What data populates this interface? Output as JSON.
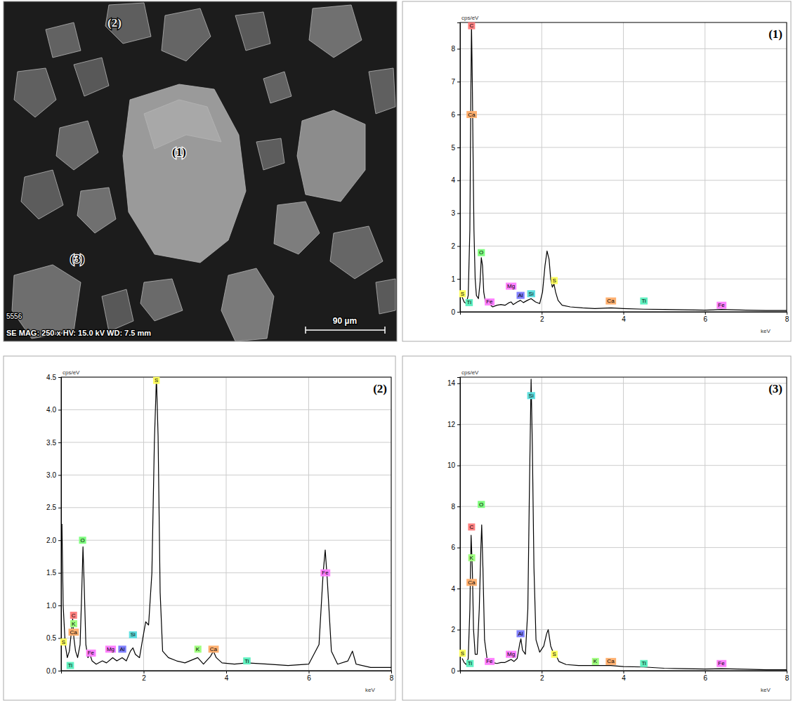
{
  "sem_image": {
    "markers": [
      "(1)",
      "(2)",
      "(3)"
    ],
    "id_label": "5556",
    "info": "SE MAG: 250 x HV: 15.0 kV WD: 7.5 mm",
    "scale_bar": "90 µm"
  },
  "chart_data": [
    {
      "type": "line",
      "title": "(1)",
      "x_label": "keV",
      "y_label": "cps/eV",
      "xlim": [
        0,
        8
      ],
      "xticks": [
        2,
        4,
        6,
        8
      ],
      "ylim": [
        0,
        8.8
      ],
      "yticks": [
        0,
        1,
        2,
        3,
        4,
        5,
        6,
        7,
        8
      ],
      "grid": true,
      "x": [
        0.05,
        0.1,
        0.15,
        0.2,
        0.24,
        0.26,
        0.28,
        0.3,
        0.32,
        0.34,
        0.37,
        0.4,
        0.45,
        0.49,
        0.52,
        0.55,
        0.58,
        0.62,
        0.7,
        0.8,
        0.9,
        1.0,
        1.1,
        1.2,
        1.25,
        1.3,
        1.4,
        1.48,
        1.55,
        1.65,
        1.74,
        1.85,
        1.95,
        2.02,
        2.08,
        2.13,
        2.18,
        2.22,
        2.26,
        2.3,
        2.34,
        2.4,
        2.5,
        2.7,
        3.0,
        3.3,
        3.7,
        4.0,
        4.5,
        5.0,
        5.5,
        6.0,
        6.4,
        7.0,
        7.5,
        8.0
      ],
      "series": [
        {
          "color": "#000000",
          "values": [
            0.45,
            0.3,
            0.25,
            0.5,
            2.5,
            6.0,
            8.75,
            7.0,
            4.6,
            2.5,
            1.0,
            0.5,
            0.4,
            0.9,
            1.65,
            1.4,
            0.6,
            0.3,
            0.25,
            0.15,
            0.2,
            0.22,
            0.2,
            0.28,
            0.3,
            0.22,
            0.3,
            0.35,
            0.28,
            0.35,
            0.4,
            0.3,
            0.25,
            0.6,
            1.4,
            1.85,
            1.6,
            1.0,
            0.75,
            0.85,
            0.6,
            0.35,
            0.2,
            0.15,
            0.12,
            0.1,
            0.12,
            0.1,
            0.08,
            0.07,
            0.06,
            0.05,
            0.07,
            0.05,
            0.04,
            0.04
          ]
        }
      ],
      "annotations": [
        {
          "text": "C",
          "x": 0.28,
          "y": 8.7,
          "color": "#ff7f7f"
        },
        {
          "text": "Ca",
          "x": 0.28,
          "y": 6.0,
          "color": "#ffb070"
        },
        {
          "text": "O",
          "x": 0.52,
          "y": 1.8,
          "color": "#80ff80"
        },
        {
          "text": "S",
          "x": 0.06,
          "y": 0.55,
          "color": "#ffff60"
        },
        {
          "text": "Ti",
          "x": 0.22,
          "y": 0.28,
          "color": "#60f0c0"
        },
        {
          "text": "Fe",
          "x": 0.72,
          "y": 0.3,
          "color": "#ff80ff"
        },
        {
          "text": "Mg",
          "x": 1.25,
          "y": 0.78,
          "color": "#ff80ff"
        },
        {
          "text": "Al",
          "x": 1.48,
          "y": 0.5,
          "color": "#8080ff"
        },
        {
          "text": "Si",
          "x": 1.74,
          "y": 0.55,
          "color": "#60e0e0"
        },
        {
          "text": "S",
          "x": 2.31,
          "y": 0.95,
          "color": "#ffff60"
        },
        {
          "text": "Ca",
          "x": 3.69,
          "y": 0.33,
          "color": "#ffb070"
        },
        {
          "text": "Ti",
          "x": 4.5,
          "y": 0.33,
          "color": "#60f0c0"
        },
        {
          "text": "Fe",
          "x": 6.4,
          "y": 0.2,
          "color": "#ff80ff"
        }
      ]
    },
    {
      "type": "line",
      "title": "(2)",
      "x_label": "keV",
      "y_label": "cps/eV",
      "xlim": [
        0,
        8
      ],
      "xticks": [
        2,
        4,
        6,
        8
      ],
      "ylim": [
        0,
        4.5
      ],
      "yticks": [
        {
          "value": 0,
          "label": "0.0"
        },
        0.5,
        {
          "value": 1,
          "label": "1.0"
        },
        1.5,
        {
          "value": 2,
          "label": "2.0"
        },
        2.5,
        {
          "value": 3,
          "label": "3.0"
        },
        3.5,
        {
          "value": 4,
          "label": "4.0"
        },
        4.5
      ],
      "grid": true,
      "x": [
        0.02,
        0.05,
        0.1,
        0.15,
        0.2,
        0.25,
        0.28,
        0.31,
        0.35,
        0.4,
        0.46,
        0.5,
        0.53,
        0.56,
        0.6,
        0.65,
        0.7,
        0.75,
        0.85,
        1.0,
        1.1,
        1.25,
        1.35,
        1.48,
        1.58,
        1.68,
        1.74,
        1.8,
        1.9,
        1.98,
        2.05,
        2.12,
        2.2,
        2.26,
        2.31,
        2.35,
        2.4,
        2.46,
        2.6,
        2.8,
        3.0,
        3.31,
        3.45,
        3.62,
        3.69,
        3.76,
        3.9,
        4.2,
        4.5,
        5.0,
        5.5,
        6.0,
        6.25,
        6.35,
        6.4,
        6.45,
        6.55,
        6.7,
        6.95,
        7.06,
        7.15,
        7.5,
        8.0
      ],
      "series": [
        {
          "color": "#000000",
          "values": [
            2.25,
            1.0,
            0.4,
            0.2,
            0.3,
            0.6,
            0.8,
            0.5,
            0.3,
            0.2,
            0.4,
            1.2,
            1.9,
            1.3,
            0.4,
            0.2,
            0.25,
            0.15,
            0.1,
            0.15,
            0.12,
            0.2,
            0.15,
            0.2,
            0.15,
            0.3,
            0.35,
            0.25,
            0.2,
            0.5,
            0.75,
            0.7,
            1.5,
            3.5,
            4.5,
            3.6,
            1.2,
            0.3,
            0.2,
            0.15,
            0.12,
            0.2,
            0.1,
            0.22,
            0.3,
            0.2,
            0.12,
            0.1,
            0.12,
            0.1,
            0.08,
            0.1,
            0.4,
            1.5,
            1.85,
            1.4,
            0.3,
            0.1,
            0.15,
            0.3,
            0.1,
            0.05,
            0.05
          ]
        }
      ],
      "annotations": [
        {
          "text": "O",
          "x": 0.52,
          "y": 2.0,
          "color": "#80ff80"
        },
        {
          "text": "C",
          "x": 0.3,
          "y": 0.85,
          "color": "#ff7f7f"
        },
        {
          "text": "K",
          "x": 0.3,
          "y": 0.72,
          "color": "#a0ff80"
        },
        {
          "text": "Ca",
          "x": 0.3,
          "y": 0.59,
          "color": "#ffb070"
        },
        {
          "text": "S",
          "x": 0.06,
          "y": 0.44,
          "color": "#ffff60"
        },
        {
          "text": "Ti",
          "x": 0.22,
          "y": 0.08,
          "color": "#60f0c0"
        },
        {
          "text": "Fe",
          "x": 0.72,
          "y": 0.27,
          "color": "#ff80ff"
        },
        {
          "text": "Mg",
          "x": 1.2,
          "y": 0.33,
          "color": "#ff80ff"
        },
        {
          "text": "Al",
          "x": 1.48,
          "y": 0.33,
          "color": "#8080ff"
        },
        {
          "text": "Si",
          "x": 1.74,
          "y": 0.55,
          "color": "#60e0e0"
        },
        {
          "text": "S",
          "x": 2.31,
          "y": 4.45,
          "color": "#ffff60"
        },
        {
          "text": "K",
          "x": 3.31,
          "y": 0.33,
          "color": "#a0ff80"
        },
        {
          "text": "Ca",
          "x": 3.69,
          "y": 0.33,
          "color": "#ffb070"
        },
        {
          "text": "Ti",
          "x": 4.5,
          "y": 0.15,
          "color": "#60f0c0"
        },
        {
          "text": "Fe",
          "x": 6.4,
          "y": 1.5,
          "color": "#ff80ff"
        }
      ]
    },
    {
      "type": "line",
      "title": "(3)",
      "x_label": "keV",
      "y_label": "cps/eV",
      "xlim": [
        0,
        8
      ],
      "xticks": [
        2,
        4,
        6,
        8
      ],
      "ylim": [
        0,
        14.3
      ],
      "yticks": [
        0,
        2,
        4,
        6,
        8,
        10,
        12,
        14
      ],
      "grid": true,
      "x": [
        0.05,
        0.1,
        0.15,
        0.2,
        0.24,
        0.27,
        0.3,
        0.33,
        0.37,
        0.42,
        0.47,
        0.51,
        0.53,
        0.56,
        0.6,
        0.66,
        0.72,
        0.8,
        0.9,
        1.0,
        1.1,
        1.2,
        1.25,
        1.32,
        1.4,
        1.46,
        1.49,
        1.53,
        1.6,
        1.66,
        1.7,
        1.74,
        1.77,
        1.81,
        1.86,
        1.95,
        2.05,
        2.12,
        2.16,
        2.22,
        2.28,
        2.34,
        2.42,
        2.6,
        2.9,
        3.31,
        3.69,
        4.0,
        4.5,
        5.0,
        5.5,
        6.0,
        6.4,
        7.0,
        7.5,
        8.0
      ],
      "series": [
        {
          "color": "#000000",
          "values": [
            0.6,
            0.4,
            0.3,
            0.6,
            3.0,
            6.6,
            5.0,
            2.0,
            0.8,
            0.8,
            3.0,
            6.0,
            7.1,
            5.0,
            1.5,
            0.6,
            0.5,
            0.4,
            0.35,
            0.4,
            0.4,
            0.5,
            0.55,
            0.45,
            0.6,
            1.3,
            1.55,
            1.0,
            0.8,
            3.0,
            9.0,
            14.2,
            11.0,
            5.0,
            1.5,
            0.9,
            1.2,
            1.8,
            2.0,
            1.2,
            0.9,
            0.8,
            0.45,
            0.3,
            0.25,
            0.25,
            0.25,
            0.2,
            0.18,
            0.12,
            0.1,
            0.08,
            0.1,
            0.07,
            0.05,
            0.05
          ]
        }
      ],
      "annotations": [
        {
          "text": "Si",
          "x": 1.74,
          "y": 13.4,
          "color": "#60e0e0"
        },
        {
          "text": "O",
          "x": 0.52,
          "y": 8.1,
          "color": "#80ff80"
        },
        {
          "text": "C",
          "x": 0.28,
          "y": 7.0,
          "color": "#ff7f7f"
        },
        {
          "text": "K",
          "x": 0.28,
          "y": 5.5,
          "color": "#a0ff80"
        },
        {
          "text": "Ca",
          "x": 0.28,
          "y": 4.3,
          "color": "#ffb070"
        },
        {
          "text": "Al",
          "x": 1.48,
          "y": 1.8,
          "color": "#8080ff"
        },
        {
          "text": "Mg",
          "x": 1.25,
          "y": 0.8,
          "color": "#ff80ff"
        },
        {
          "text": "S",
          "x": 0.06,
          "y": 0.85,
          "color": "#ffff60"
        },
        {
          "text": "Ti",
          "x": 0.24,
          "y": 0.35,
          "color": "#60f0c0"
        },
        {
          "text": "Fe",
          "x": 0.72,
          "y": 0.45,
          "color": "#ff80ff"
        },
        {
          "text": "S",
          "x": 2.31,
          "y": 0.8,
          "color": "#ffff60"
        },
        {
          "text": "K",
          "x": 3.31,
          "y": 0.45,
          "color": "#a0ff80"
        },
        {
          "text": "Ca",
          "x": 3.69,
          "y": 0.45,
          "color": "#ffb070"
        },
        {
          "text": "Ti",
          "x": 4.5,
          "y": 0.35,
          "color": "#60f0c0"
        },
        {
          "text": "Fe",
          "x": 6.4,
          "y": 0.35,
          "color": "#ff80ff"
        }
      ]
    }
  ]
}
